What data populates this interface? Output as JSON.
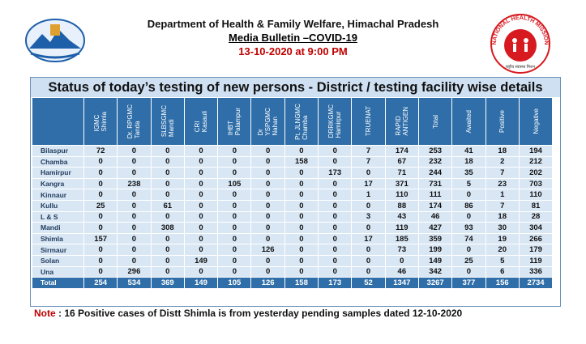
{
  "header": {
    "title": "Department of Health & Family Welfare, Himachal Pradesh",
    "subtitle": "Media Bulletin –COVID-19",
    "date": "13-10-2020 at 9:00 PM",
    "logo_right": {
      "ring": "NATIONAL HEALTH MISSION",
      "tagline": "राष्ट्रीय स्वास्थ्य मिशन"
    }
  },
  "table": {
    "title": "Status of today’s testing of new persons - District / testing facility wise details",
    "columns": [
      "IGMC\nShimla",
      "Dr. RPGMC\nTanda",
      "SLBSGMC\nMandi",
      "CRI\nKasauli",
      "IHBT\nPalampur",
      "Dr\nYSPGMC\nNahan",
      "Pt. JLNGMC\nChamba",
      "DRRKGMC\nHamirpur",
      "TRUENAT",
      "RAPID\nANTIGEN",
      "Total",
      "Awaited",
      "Positive",
      "Negative"
    ],
    "rows": [
      {
        "label": "Bilaspur",
        "values": [
          72,
          0,
          0,
          0,
          0,
          0,
          0,
          0,
          7,
          174,
          253,
          41,
          18,
          194
        ]
      },
      {
        "label": "Chamba",
        "values": [
          0,
          0,
          0,
          0,
          0,
          0,
          158,
          0,
          7,
          67,
          232,
          18,
          2,
          212
        ]
      },
      {
        "label": "Hamirpur",
        "values": [
          0,
          0,
          0,
          0,
          0,
          0,
          0,
          173,
          0,
          71,
          244,
          35,
          7,
          202
        ]
      },
      {
        "label": "Kangra",
        "values": [
          0,
          238,
          0,
          0,
          105,
          0,
          0,
          0,
          17,
          371,
          731,
          5,
          23,
          703
        ]
      },
      {
        "label": "Kinnaur",
        "values": [
          0,
          0,
          0,
          0,
          0,
          0,
          0,
          0,
          1,
          110,
          111,
          0,
          1,
          110
        ]
      },
      {
        "label": "Kullu",
        "values": [
          25,
          0,
          61,
          0,
          0,
          0,
          0,
          0,
          0,
          88,
          174,
          86,
          7,
          81
        ]
      },
      {
        "label": "L & S",
        "values": [
          0,
          0,
          0,
          0,
          0,
          0,
          0,
          0,
          3,
          43,
          46,
          0,
          18,
          28
        ]
      },
      {
        "label": "Mandi",
        "values": [
          0,
          0,
          308,
          0,
          0,
          0,
          0,
          0,
          0,
          119,
          427,
          93,
          30,
          304
        ]
      },
      {
        "label": "Shimla",
        "values": [
          157,
          0,
          0,
          0,
          0,
          0,
          0,
          0,
          17,
          185,
          359,
          74,
          19,
          266
        ]
      },
      {
        "label": "Sirmaur",
        "values": [
          0,
          0,
          0,
          0,
          0,
          126,
          0,
          0,
          0,
          73,
          199,
          0,
          20,
          179
        ]
      },
      {
        "label": "Solan",
        "values": [
          0,
          0,
          0,
          149,
          0,
          0,
          0,
          0,
          0,
          0,
          149,
          25,
          5,
          119
        ]
      },
      {
        "label": "Una",
        "values": [
          0,
          296,
          0,
          0,
          0,
          0,
          0,
          0,
          0,
          46,
          342,
          0,
          6,
          336
        ]
      },
      {
        "label": "Total",
        "values": [
          254,
          534,
          369,
          149,
          105,
          126,
          158,
          173,
          52,
          1347,
          3267,
          377,
          156,
          2734
        ]
      }
    ]
  },
  "note": {
    "label": "Note",
    "text": ": 16 Positive cases of Distt Shimla is from yesterday pending samples dated 12-10-2020"
  }
}
